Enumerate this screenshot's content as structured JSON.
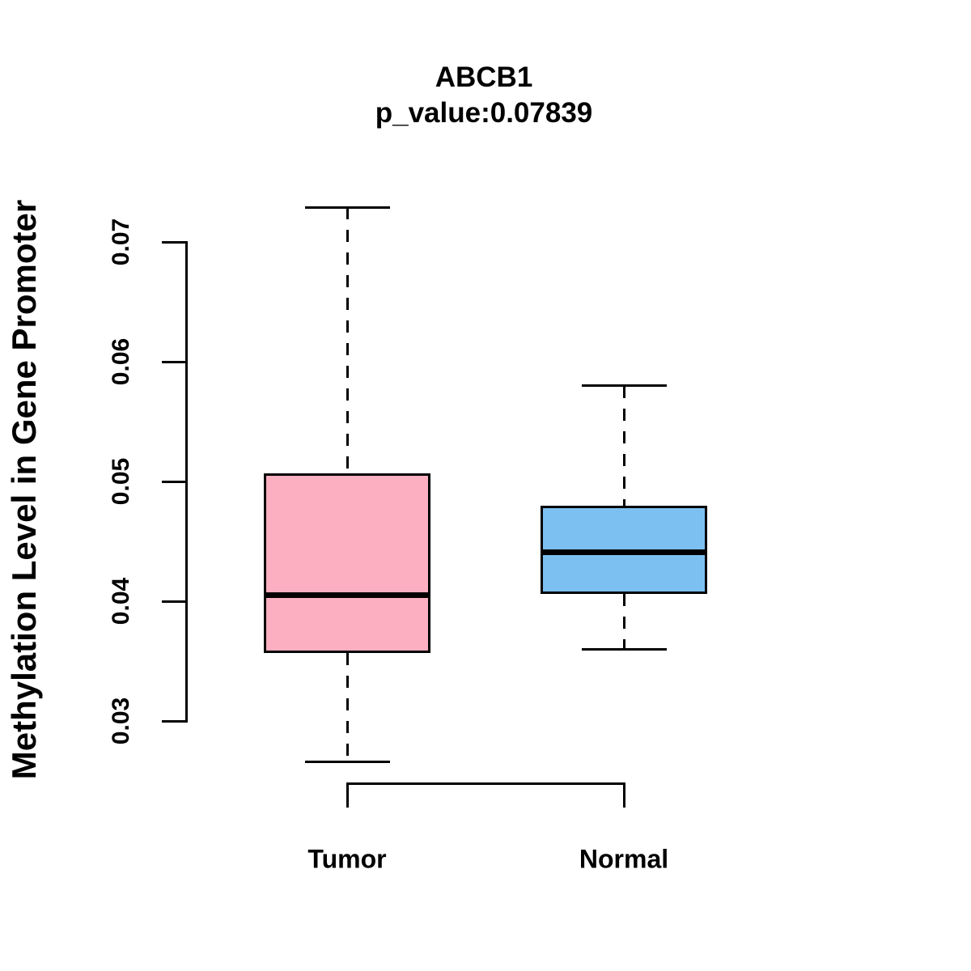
{
  "chart_data": {
    "type": "boxplot",
    "title": "ABCB1",
    "subtitle": "p_value:0.07839",
    "p_value": 0.07839,
    "ylabel": "Methylation Level in Gene Promoter",
    "xlabel": "",
    "y_ticks": [
      0.03,
      0.04,
      0.05,
      0.06,
      0.07
    ],
    "y_tick_labels": [
      "0.03",
      "0.04",
      "0.05",
      "0.06",
      "0.07"
    ],
    "ylim": [
      0.03,
      0.07
    ],
    "grid": false,
    "legend": "none",
    "stroke_color": "#000000",
    "background_color": "#ffffff",
    "groups": [
      {
        "label": "Tumor",
        "color": "#FBAFC1",
        "whisker_low": 0.0266,
        "q1": 0.0357,
        "median": 0.0405,
        "q3": 0.0507,
        "whisker_high": 0.0729
      },
      {
        "label": "Normal",
        "color": "#7CC0F2",
        "whisker_low": 0.036,
        "q1": 0.0406,
        "median": 0.0441,
        "q3": 0.048,
        "whisker_high": 0.058
      }
    ]
  }
}
